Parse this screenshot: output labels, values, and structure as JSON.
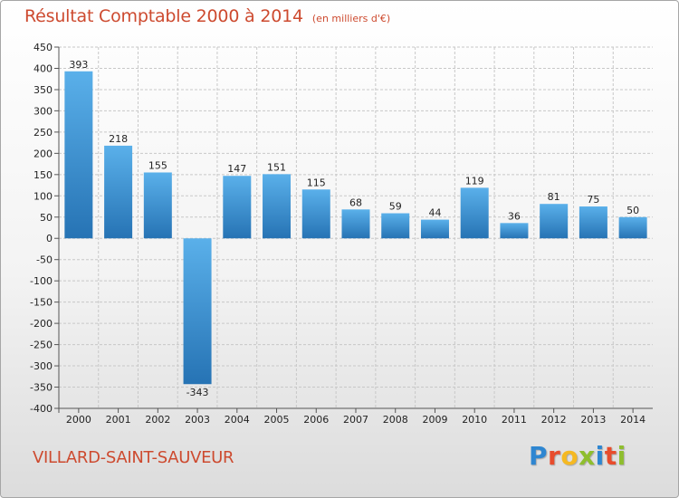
{
  "header": {
    "title": "Résultat Comptable 2000 à 2014",
    "unit": "(en milliers d'€)"
  },
  "footer": {
    "commune": "VILLARD-SAINT-SAUVEUR",
    "brand": "Proxiti",
    "brand_letters": [
      {
        "ch": "P",
        "color": "#2e86d1"
      },
      {
        "ch": "r",
        "color": "#e84c2c"
      },
      {
        "ch": "o",
        "color": "#f5b922"
      },
      {
        "ch": "x",
        "color": "#8fbe2e"
      },
      {
        "ch": "i",
        "color": "#2e86d1"
      },
      {
        "ch": "t",
        "color": "#e84c2c"
      },
      {
        "ch": "i",
        "color": "#8fbe2e"
      }
    ]
  },
  "colors": {
    "title": "#cd4a2f",
    "bar_light": "#5ab0ea",
    "bar_dark": "#2673b4",
    "grid": "#c8c8c8",
    "axis_text": "#222222"
  },
  "chart_data": {
    "type": "bar",
    "title": "Résultat Comptable 2000 à 2014",
    "subtitle": "(en milliers d'€)",
    "xlabel": "",
    "ylabel": "",
    "categories": [
      "2000",
      "2001",
      "2002",
      "2003",
      "2004",
      "2005",
      "2006",
      "2007",
      "2008",
      "2009",
      "2010",
      "2011",
      "2012",
      "2013",
      "2014"
    ],
    "values": [
      393,
      218,
      155,
      -343,
      147,
      151,
      115,
      68,
      59,
      44,
      119,
      36,
      81,
      75,
      50
    ],
    "ylim": [
      -400,
      450
    ],
    "yticks": [
      450,
      400,
      350,
      300,
      250,
      200,
      150,
      100,
      50,
      0,
      -50,
      -100,
      -150,
      -200,
      -250,
      -300,
      -350,
      -400
    ],
    "ytick_labels": [
      "450",
      "400",
      "350",
      "300",
      "250",
      "200",
      "150",
      "100",
      "50",
      "0",
      "-50",
      "-100",
      "-150",
      "-200",
      "-250",
      "-300",
      "-350",
      "-400"
    ],
    "grid": true
  }
}
